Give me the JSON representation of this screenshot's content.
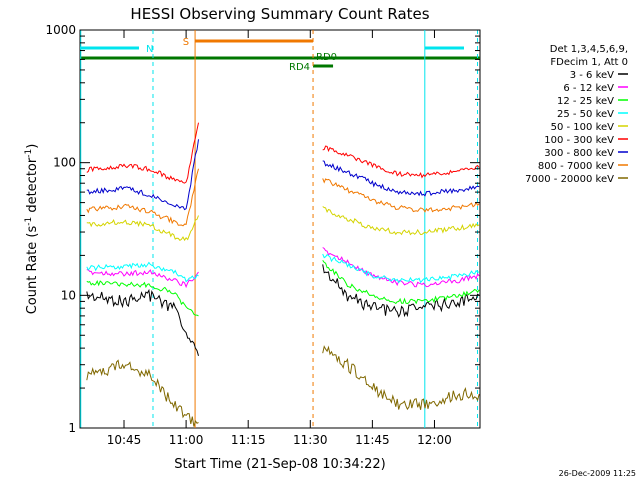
{
  "chart_data": {
    "type": "line",
    "title": "HESSI Observing Summary Count Rates",
    "xlabel": "Start Time (21-Sep-08 10:34:22)",
    "ylabel": "Count Rate (s",
    "ylabel_sup": "-1",
    "ylabel_mid": " detector",
    "ylabel_end": ")",
    "yscale": "log",
    "ylim": [
      1,
      1000
    ],
    "xlim": [
      "10:34:22",
      "12:11:00"
    ],
    "x_ticks": [
      "10:45",
      "11:00",
      "11:15",
      "11:30",
      "11:45",
      "12:00"
    ],
    "y_ticks": [
      "1",
      "10",
      "100",
      "1000"
    ],
    "footer_date": "26-Dec-2009 11:25",
    "legend": {
      "placement": "right",
      "header": [
        "Det 1,3,4,5,6,9,",
        "FDecim 1, Att 0"
      ]
    },
    "flags": [
      {
        "label": "N",
        "color": "#00e5ee"
      },
      {
        "label": "S",
        "color": "#f07800"
      },
      {
        "label": "RD0",
        "color": "#007700"
      },
      {
        "label": "RD4",
        "color": "#007700"
      }
    ],
    "series": [
      {
        "name": "3 - 6 keV",
        "color": "#000000",
        "before": [
          [
            10.6,
            10
          ],
          [
            10.75,
            9
          ],
          [
            10.85,
            10
          ],
          [
            10.95,
            8
          ],
          [
            11.0,
            5
          ],
          [
            11.05,
            3.5
          ]
        ],
        "after": [
          [
            11.55,
            16
          ],
          [
            11.65,
            10
          ],
          [
            11.75,
            8
          ],
          [
            11.85,
            7.5
          ],
          [
            11.95,
            8
          ],
          [
            12.1,
            9
          ],
          [
            12.18,
            10
          ]
        ]
      },
      {
        "name": "6 - 12 keV",
        "color": "#ff00ff",
        "before": [
          [
            10.6,
            15
          ],
          [
            10.75,
            14.5
          ],
          [
            10.85,
            15
          ],
          [
            10.95,
            13
          ],
          [
            11.0,
            12
          ],
          [
            11.05,
            15
          ]
        ],
        "after": [
          [
            11.55,
            22
          ],
          [
            11.65,
            18
          ],
          [
            11.75,
            14
          ],
          [
            11.85,
            12.5
          ],
          [
            11.95,
            12
          ],
          [
            12.1,
            13
          ],
          [
            12.18,
            14
          ]
        ]
      },
      {
        "name": "12 - 25 keV",
        "color": "#00ff00",
        "before": [
          [
            10.6,
            12.5
          ],
          [
            10.75,
            12
          ],
          [
            10.85,
            12
          ],
          [
            10.95,
            10.5
          ],
          [
            11.0,
            8
          ],
          [
            11.05,
            7
          ]
        ],
        "after": [
          [
            11.55,
            18
          ],
          [
            11.65,
            12
          ],
          [
            11.75,
            10
          ],
          [
            11.85,
            9
          ],
          [
            11.95,
            9
          ],
          [
            12.1,
            10
          ],
          [
            12.18,
            11
          ]
        ]
      },
      {
        "name": "25 - 50 keV",
        "color": "#00ffff",
        "before": [
          [
            10.6,
            16
          ],
          [
            10.75,
            16.5
          ],
          [
            10.85,
            17
          ],
          [
            10.95,
            15
          ],
          [
            11.0,
            13
          ],
          [
            11.05,
            14
          ]
        ],
        "after": [
          [
            11.55,
            20
          ],
          [
            11.65,
            17
          ],
          [
            11.75,
            14
          ],
          [
            11.85,
            13
          ],
          [
            11.95,
            13
          ],
          [
            12.1,
            14
          ],
          [
            12.18,
            15
          ]
        ]
      },
      {
        "name": "50 - 100 keV",
        "color": "#d4d400",
        "before": [
          [
            10.6,
            34
          ],
          [
            10.75,
            36
          ],
          [
            10.85,
            34
          ],
          [
            10.95,
            28
          ],
          [
            11.0,
            26
          ],
          [
            11.05,
            40
          ]
        ],
        "after": [
          [
            11.55,
            45
          ],
          [
            11.65,
            38
          ],
          [
            11.75,
            32
          ],
          [
            11.85,
            30
          ],
          [
            11.95,
            30
          ],
          [
            12.1,
            32
          ],
          [
            12.18,
            34
          ]
        ]
      },
      {
        "name": "100 - 300 keV",
        "color": "#ff0000",
        "before": [
          [
            10.6,
            88
          ],
          [
            10.75,
            95
          ],
          [
            10.85,
            90
          ],
          [
            10.95,
            75
          ],
          [
            11.0,
            70
          ],
          [
            11.05,
            200
          ]
        ],
        "after": [
          [
            11.55,
            130
          ],
          [
            11.65,
            115
          ],
          [
            11.75,
            95
          ],
          [
            11.85,
            82
          ],
          [
            11.95,
            80
          ],
          [
            12.1,
            86
          ],
          [
            12.18,
            92
          ]
        ]
      },
      {
        "name": "300 - 800 keV",
        "color": "#0000cc",
        "before": [
          [
            10.6,
            60
          ],
          [
            10.75,
            64
          ],
          [
            10.85,
            58
          ],
          [
            10.95,
            48
          ],
          [
            11.0,
            45
          ],
          [
            11.05,
            150
          ]
        ],
        "after": [
          [
            11.55,
            100
          ],
          [
            11.65,
            85
          ],
          [
            11.75,
            70
          ],
          [
            11.85,
            60
          ],
          [
            11.95,
            58
          ],
          [
            12.1,
            62
          ],
          [
            12.18,
            66
          ]
        ]
      },
      {
        "name": "800 - 7000 keV",
        "color": "#f07800",
        "before": [
          [
            10.6,
            44
          ],
          [
            10.75,
            47
          ],
          [
            10.85,
            43
          ],
          [
            10.95,
            36
          ],
          [
            11.0,
            34
          ],
          [
            11.05,
            90
          ]
        ],
        "after": [
          [
            11.55,
            75
          ],
          [
            11.65,
            62
          ],
          [
            11.75,
            52
          ],
          [
            11.85,
            46
          ],
          [
            11.95,
            44
          ],
          [
            12.1,
            46
          ],
          [
            12.18,
            49
          ]
        ]
      },
      {
        "name": "7000 - 20000 keV",
        "color": "#806800",
        "before": [
          [
            10.6,
            2.5
          ],
          [
            10.75,
            3
          ],
          [
            10.85,
            2.5
          ],
          [
            10.95,
            1.5
          ],
          [
            11.0,
            1.2
          ],
          [
            11.05,
            1.1
          ]
        ],
        "after": [
          [
            11.55,
            4
          ],
          [
            11.65,
            3
          ],
          [
            11.75,
            2
          ],
          [
            11.85,
            1.5
          ],
          [
            11.95,
            1.5
          ],
          [
            12.1,
            1.8
          ],
          [
            12.18,
            1.8
          ]
        ]
      }
    ]
  }
}
